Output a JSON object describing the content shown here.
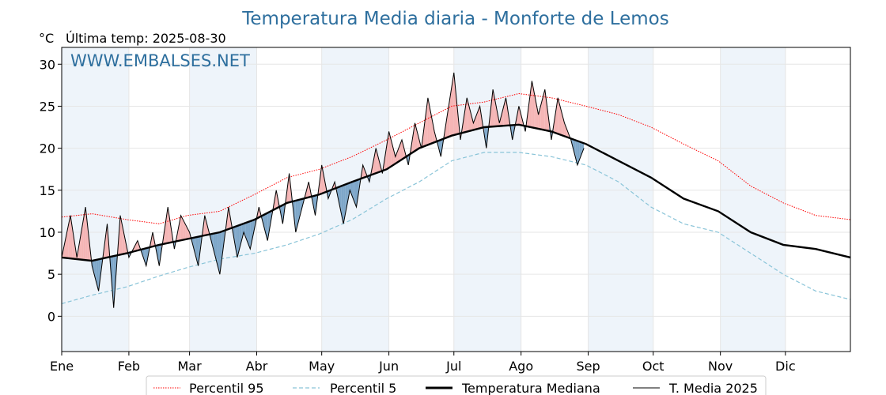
{
  "chart_data": {
    "type": "line",
    "title": "Temperatura Media diaria - Monforte de Lemos",
    "unit": "°C",
    "subtitle": "Última temp: 2025-08-30",
    "watermark": "WWW.EMBALSES.NET",
    "ylim": [
      -4.2,
      32
    ],
    "yticks": [
      0,
      5,
      10,
      15,
      20,
      25,
      30
    ],
    "months": [
      "Ene",
      "Feb",
      "Mar",
      "Abr",
      "May",
      "Jun",
      "Jul",
      "Ago",
      "Sep",
      "Oct",
      "Nov",
      "Dic"
    ],
    "grid": true,
    "legend_position": "bottom",
    "colors": {
      "p95": "#ff0000",
      "p5": "#89c4d8",
      "median": "#000000",
      "media2025": "#000000",
      "above": "#f26b6b",
      "above_light": "#f5b5b5",
      "below": "#7ea7c9",
      "band": "#eef4fa",
      "title": "#2e6f9e"
    },
    "series": [
      {
        "name": "Percentil 95",
        "style": "dotted",
        "days": [
          1,
          15,
          31,
          46,
          59,
          74,
          90,
          105,
          120,
          135,
          151,
          166,
          181,
          196,
          212,
          227,
          243,
          258,
          273,
          288,
          304,
          319,
          334,
          349,
          365
        ],
        "values": [
          11.8,
          12.2,
          11.5,
          11.0,
          12.0,
          12.5,
          14.5,
          16.5,
          17.5,
          19.0,
          21.0,
          23.0,
          25.0,
          25.5,
          26.5,
          26.0,
          25.0,
          24.0,
          22.5,
          20.5,
          18.5,
          15.5,
          13.5,
          12.0,
          11.5
        ]
      },
      {
        "name": "Percentil 5",
        "style": "dashed",
        "days": [
          1,
          15,
          31,
          46,
          59,
          74,
          90,
          105,
          120,
          135,
          151,
          166,
          181,
          196,
          212,
          227,
          243,
          258,
          273,
          288,
          304,
          319,
          334,
          349,
          365
        ],
        "values": [
          1.5,
          2.5,
          3.5,
          4.8,
          5.8,
          6.8,
          7.5,
          8.5,
          9.8,
          11.5,
          14.0,
          16.0,
          18.5,
          19.5,
          19.5,
          19.0,
          18.0,
          16.0,
          13.0,
          11.0,
          10.0,
          7.5,
          5.0,
          3.0,
          2.0
        ]
      },
      {
        "name": "Temperatura Mediana",
        "style": "solid-thick",
        "days": [
          1,
          15,
          31,
          46,
          59,
          74,
          90,
          105,
          120,
          135,
          151,
          166,
          181,
          196,
          212,
          227,
          243,
          258,
          273,
          288,
          304,
          319,
          334,
          349,
          365
        ],
        "values": [
          7.0,
          6.6,
          7.5,
          8.5,
          9.2,
          10.0,
          11.5,
          13.5,
          14.5,
          16.0,
          17.5,
          20.0,
          21.5,
          22.5,
          22.8,
          22.0,
          20.5,
          18.5,
          16.5,
          14.0,
          12.5,
          10.0,
          8.5,
          8.0,
          7.0
        ]
      },
      {
        "name": "T. Media 2025",
        "style": "solid-thin",
        "days": [
          1,
          5,
          8,
          12,
          15,
          18,
          22,
          25,
          28,
          32,
          36,
          40,
          43,
          46,
          50,
          53,
          56,
          60,
          64,
          67,
          70,
          74,
          78,
          82,
          85,
          88,
          92,
          96,
          100,
          103,
          106,
          109,
          112,
          115,
          118,
          121,
          124,
          127,
          131,
          134,
          137,
          140,
          143,
          146,
          149,
          152,
          155,
          158,
          161,
          164,
          167,
          170,
          173,
          176,
          179,
          182,
          185,
          188,
          191,
          194,
          197,
          200,
          203,
          206,
          209,
          212,
          215,
          218,
          221,
          224,
          227,
          230,
          233,
          236,
          239,
          242
        ],
        "values": [
          7,
          12,
          7,
          13,
          6,
          3,
          11,
          1,
          12,
          7,
          9,
          6,
          10,
          6,
          13,
          8,
          12,
          10,
          6,
          12,
          9,
          5,
          13,
          7,
          10,
          8,
          13,
          9,
          15,
          11,
          17,
          10,
          13,
          16,
          12,
          18,
          14,
          16,
          11,
          15,
          13,
          18,
          16,
          20,
          17,
          22,
          19,
          21,
          18,
          23,
          20,
          26,
          22,
          19,
          24,
          29,
          21,
          26,
          23,
          25,
          20,
          27,
          23,
          26,
          21,
          25,
          22,
          28,
          24,
          27,
          21,
          26,
          23,
          21,
          18,
          20
        ]
      }
    ]
  },
  "legend": [
    {
      "label": "Percentil 95"
    },
    {
      "label": "Percentil 5"
    },
    {
      "label": "Temperatura Mediana"
    },
    {
      "label": "T. Media 2025"
    }
  ]
}
